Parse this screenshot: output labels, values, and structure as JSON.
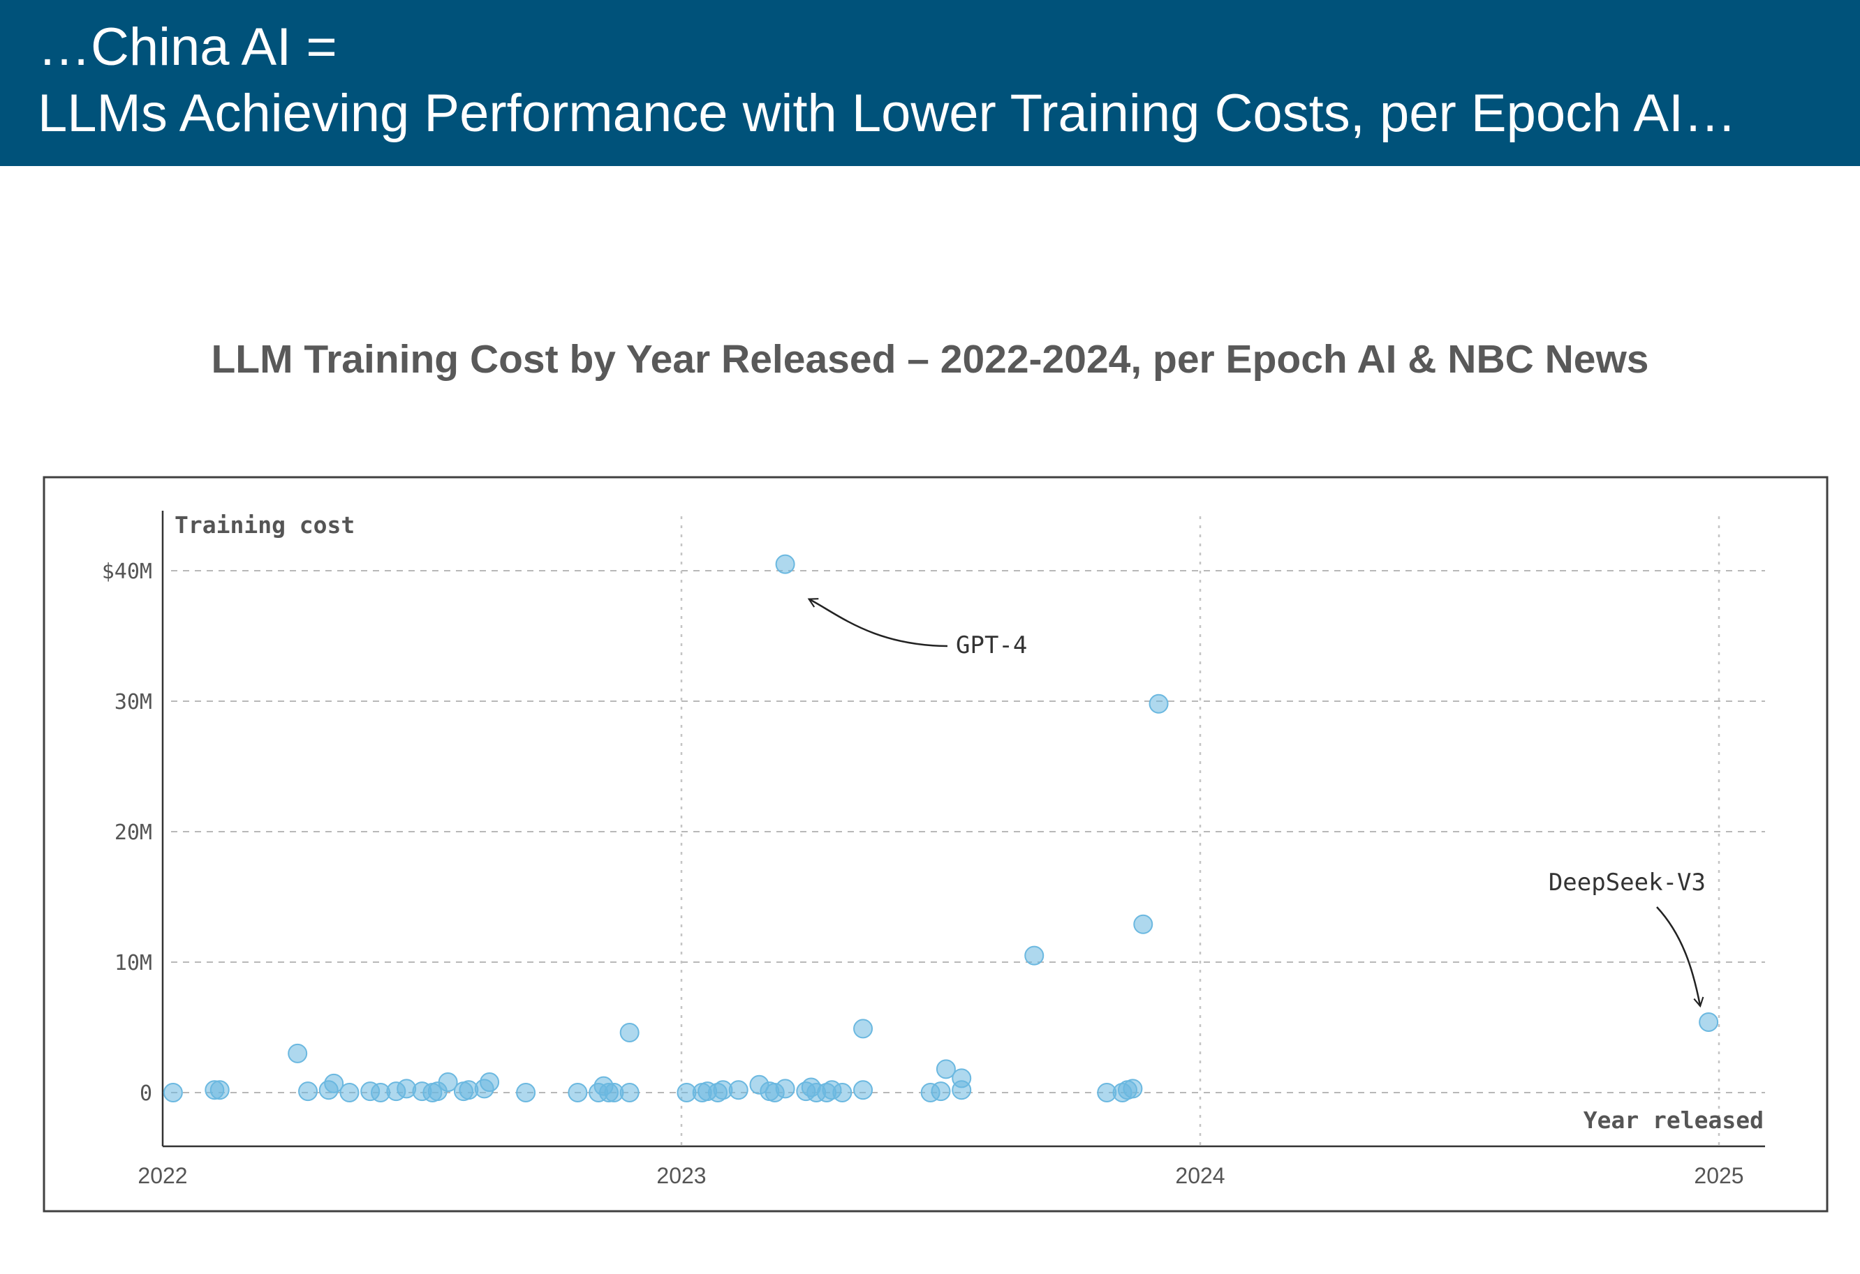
{
  "header": {
    "line1": "…China AI =",
    "line2": "LLMs Achieving Performance with Lower Training Costs, per Epoch AI…"
  },
  "chart_data": {
    "type": "scatter",
    "title": "LLM Training Cost by Year Released – 2022-2024, per Epoch AI & NBC News",
    "ylabel": "Training cost",
    "xlabel": "Year released",
    "x_ticks": [
      {
        "value": 2022,
        "label": "2022"
      },
      {
        "value": 2023,
        "label": "2023"
      },
      {
        "value": 2024,
        "label": "2024"
      },
      {
        "value": 2025,
        "label": "2025"
      }
    ],
    "y_ticks": [
      {
        "value": 0,
        "label": "0"
      },
      {
        "value": 10,
        "label": "10M"
      },
      {
        "value": 20,
        "label": "20M"
      },
      {
        "value": 30,
        "label": "30M"
      },
      {
        "value": 40,
        "label": "$40M"
      }
    ],
    "y_unit": "$M",
    "xlim": [
      2022,
      2025.08
    ],
    "ylim": [
      -4,
      44
    ],
    "grid": true,
    "point_color": "#6bb8e0",
    "points": [
      [
        2022.02,
        0
      ],
      [
        2022.1,
        0.2
      ],
      [
        2022.11,
        0.2
      ],
      [
        2022.26,
        3
      ],
      [
        2022.28,
        0.1
      ],
      [
        2022.32,
        0.2
      ],
      [
        2022.33,
        0.7
      ],
      [
        2022.36,
        0
      ],
      [
        2022.4,
        0.1
      ],
      [
        2022.42,
        0
      ],
      [
        2022.45,
        0.1
      ],
      [
        2022.47,
        0.3
      ],
      [
        2022.5,
        0.1
      ],
      [
        2022.52,
        0
      ],
      [
        2022.53,
        0.1
      ],
      [
        2022.55,
        0.8
      ],
      [
        2022.58,
        0.1
      ],
      [
        2022.59,
        0.2
      ],
      [
        2022.62,
        0.3
      ],
      [
        2022.63,
        0.8
      ],
      [
        2022.7,
        0
      ],
      [
        2022.8,
        0
      ],
      [
        2022.84,
        0
      ],
      [
        2022.85,
        0.5
      ],
      [
        2022.86,
        0
      ],
      [
        2022.87,
        0
      ],
      [
        2022.9,
        0
      ],
      [
        2022.9,
        4.6
      ],
      [
        2023.01,
        0
      ],
      [
        2023.04,
        0
      ],
      [
        2023.05,
        0.1
      ],
      [
        2023.07,
        0
      ],
      [
        2023.08,
        0.2
      ],
      [
        2023.11,
        0.2
      ],
      [
        2023.15,
        0.6
      ],
      [
        2023.17,
        0.1
      ],
      [
        2023.18,
        0
      ],
      [
        2023.2,
        0.3
      ],
      [
        2023.2,
        40.5
      ],
      [
        2023.24,
        0.1
      ],
      [
        2023.25,
        0.4
      ],
      [
        2023.26,
        0
      ],
      [
        2023.28,
        0
      ],
      [
        2023.29,
        0.2
      ],
      [
        2023.31,
        0
      ],
      [
        2023.35,
        0.2
      ],
      [
        2023.35,
        4.9
      ],
      [
        2023.48,
        0
      ],
      [
        2023.5,
        0.1
      ],
      [
        2023.51,
        1.8
      ],
      [
        2023.54,
        0.2
      ],
      [
        2023.54,
        1.1
      ],
      [
        2023.68,
        10.5
      ],
      [
        2023.82,
        0
      ],
      [
        2023.85,
        0
      ],
      [
        2023.86,
        0.2
      ],
      [
        2023.87,
        0.3
      ],
      [
        2023.89,
        12.9
      ],
      [
        2023.92,
        29.8
      ],
      [
        2024.98,
        5.4
      ]
    ],
    "annotations": [
      {
        "label": "GPT-4",
        "x": 2023.2,
        "y": 40.5
      },
      {
        "label": "DeepSeek-V3",
        "x": 2024.98,
        "y": 5.4
      }
    ]
  }
}
